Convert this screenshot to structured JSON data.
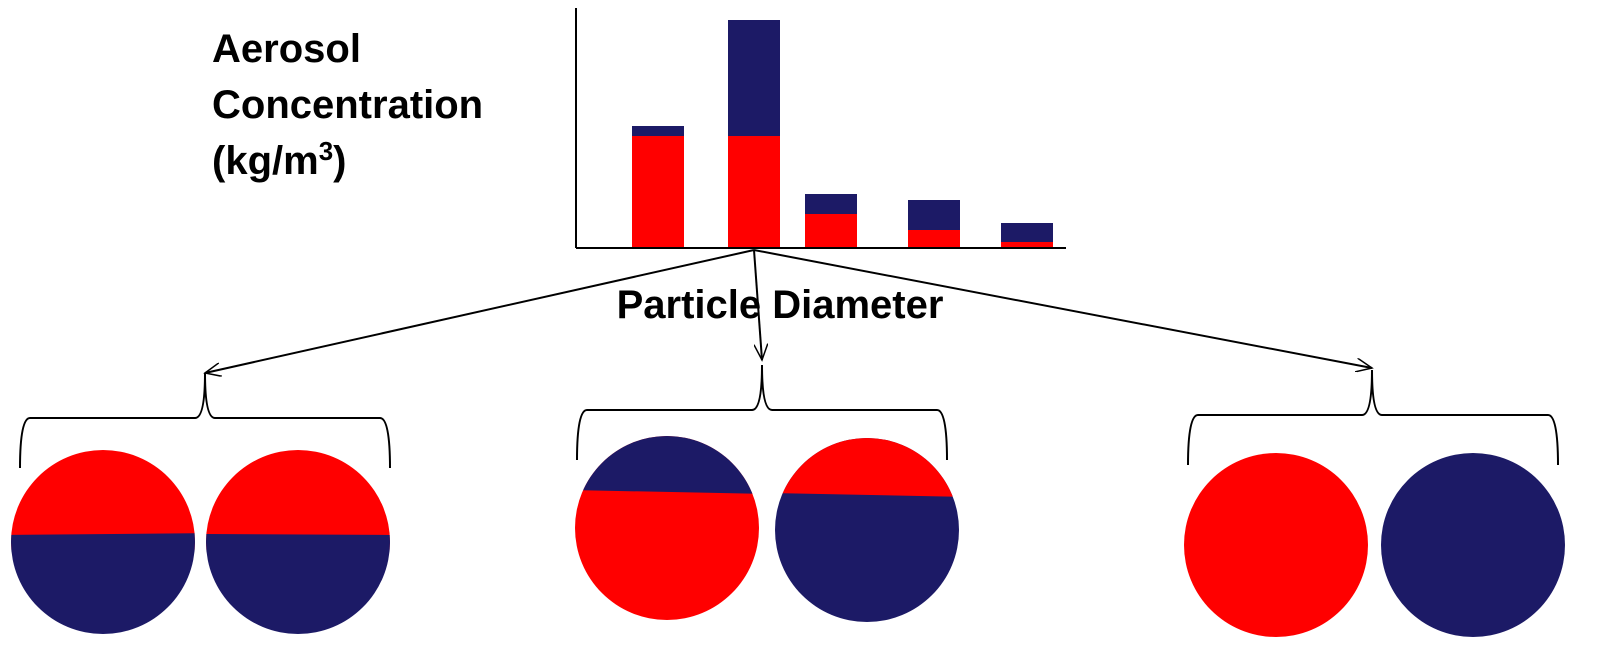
{
  "chart_data": {
    "type": "stacked-bar",
    "ylabel_lines": [
      "Aerosol",
      "Concentration"
    ],
    "ylabel_unit": {
      "prefix": "(kg/m",
      "superscript": "3",
      "suffix": ")"
    },
    "xlabel": "Particle Diameter",
    "categories": [
      null,
      null,
      null,
      null,
      null
    ],
    "series": [
      {
        "color": "#ff0000",
        "values": [
          112,
          112,
          34,
          18,
          6
        ]
      },
      {
        "color": "#1c1a66",
        "values": [
          10,
          116,
          20,
          30,
          19
        ]
      }
    ],
    "ylim": [
      0,
      240
    ]
  }
}
